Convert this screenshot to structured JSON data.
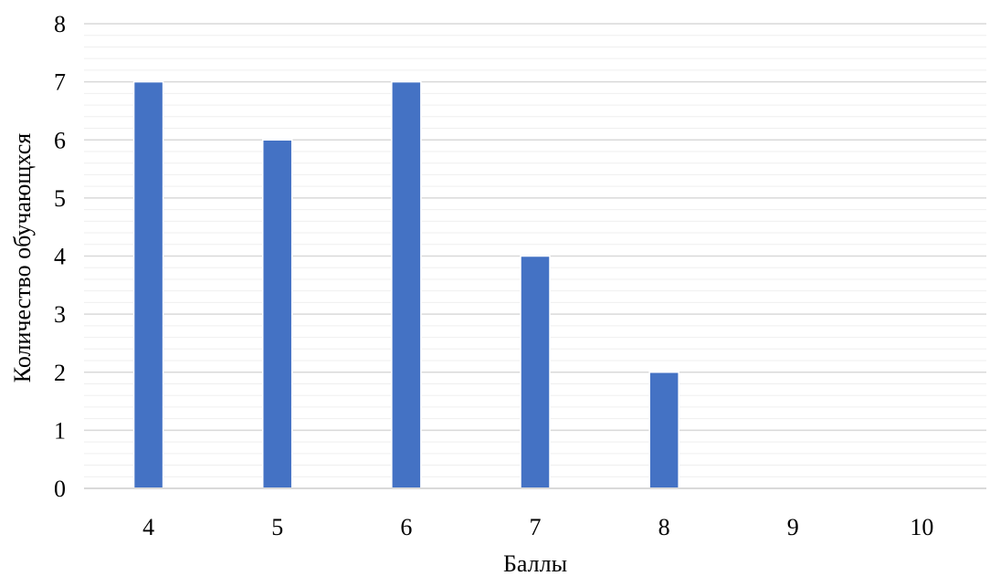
{
  "chart_data": {
    "type": "bar",
    "categories": [
      "4",
      "5",
      "6",
      "7",
      "8",
      "9",
      "10"
    ],
    "values": [
      7,
      6,
      7,
      4,
      2,
      0,
      0
    ],
    "title": "",
    "xlabel": "Баллы",
    "ylabel": "Количество обучающхся",
    "ylim": [
      0,
      8
    ],
    "yticks": [
      "0",
      "1",
      "2",
      "3",
      "4",
      "5",
      "6",
      "7",
      "8"
    ],
    "grid": true,
    "legend": "none",
    "colors": {
      "bar": "#4472c4",
      "major_grid": "#d9d9d9",
      "minor_grid": "#efefef",
      "axis": "#d9d9d9"
    }
  }
}
